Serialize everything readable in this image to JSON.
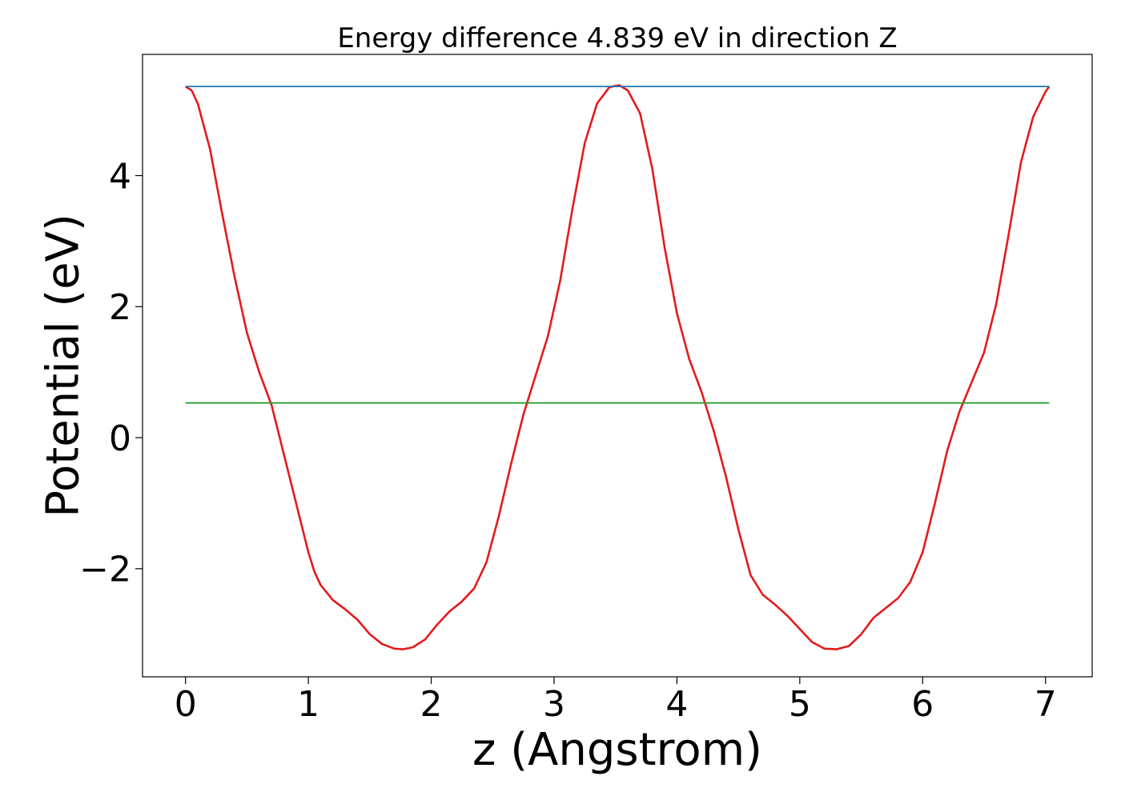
{
  "chart_data": {
    "type": "line",
    "title": "Energy difference 4.839 eV in direction Z",
    "xlabel": "z (Angstrom)",
    "ylabel": "Potential (eV)",
    "xlim": [
      -0.35,
      7.38
    ],
    "ylim": [
      -3.65,
      5.85
    ],
    "xticks": [
      0,
      1,
      2,
      3,
      4,
      5,
      6,
      7
    ],
    "xtick_labels": [
      "0",
      "1",
      "2",
      "3",
      "4",
      "5",
      "6",
      "7"
    ],
    "yticks": [
      -2,
      0,
      2,
      4
    ],
    "ytick_labels": [
      "−2",
      "0",
      "2",
      "4"
    ],
    "grid": false,
    "legend": "none",
    "series": [
      {
        "color": "#e41a1c",
        "x": [
          0.0,
          0.05,
          0.1,
          0.2,
          0.3,
          0.4,
          0.5,
          0.6,
          0.7,
          0.8,
          0.9,
          1.0,
          1.05,
          1.1,
          1.2,
          1.3,
          1.4,
          1.5,
          1.6,
          1.7,
          1.77,
          1.85,
          1.95,
          2.05,
          2.15,
          2.25,
          2.35,
          2.45,
          2.55,
          2.65,
          2.75,
          2.85,
          2.95,
          3.05,
          3.15,
          3.25,
          3.35,
          3.45,
          3.53,
          3.6,
          3.7,
          3.8,
          3.9,
          4.0,
          4.1,
          4.2,
          4.3,
          4.4,
          4.5,
          4.6,
          4.7,
          4.8,
          4.9,
          5.0,
          5.1,
          5.2,
          5.3,
          5.4,
          5.5,
          5.6,
          5.7,
          5.8,
          5.9,
          6.0,
          6.1,
          6.2,
          6.3,
          6.4,
          6.5,
          6.6,
          6.7,
          6.8,
          6.9,
          7.0,
          7.03
        ],
        "values": [
          5.36,
          5.3,
          5.1,
          4.4,
          3.4,
          2.45,
          1.6,
          1.0,
          0.5,
          -0.25,
          -1.0,
          -1.75,
          -2.05,
          -2.25,
          -2.48,
          -2.62,
          -2.78,
          -3.0,
          -3.15,
          -3.22,
          -3.23,
          -3.2,
          -3.08,
          -2.85,
          -2.65,
          -2.5,
          -2.3,
          -1.9,
          -1.2,
          -0.4,
          0.35,
          0.95,
          1.55,
          2.4,
          3.5,
          4.5,
          5.1,
          5.35,
          5.38,
          5.3,
          4.95,
          4.1,
          2.9,
          1.9,
          1.2,
          0.7,
          0.1,
          -0.6,
          -1.4,
          -2.1,
          -2.4,
          -2.55,
          -2.72,
          -2.92,
          -3.12,
          -3.22,
          -3.23,
          -3.18,
          -3.0,
          -2.75,
          -2.6,
          -2.45,
          -2.2,
          -1.75,
          -1.0,
          -0.2,
          0.4,
          0.85,
          1.3,
          2.05,
          3.1,
          4.2,
          4.9,
          5.28,
          5.36
        ]
      },
      {
        "color": "#1f77b4",
        "x": [
          0.0,
          7.03
        ],
        "values": [
          5.36,
          5.36
        ]
      },
      {
        "color": "#2ca02c",
        "x": [
          0.0,
          7.03
        ],
        "values": [
          0.53,
          0.53
        ]
      }
    ]
  }
}
